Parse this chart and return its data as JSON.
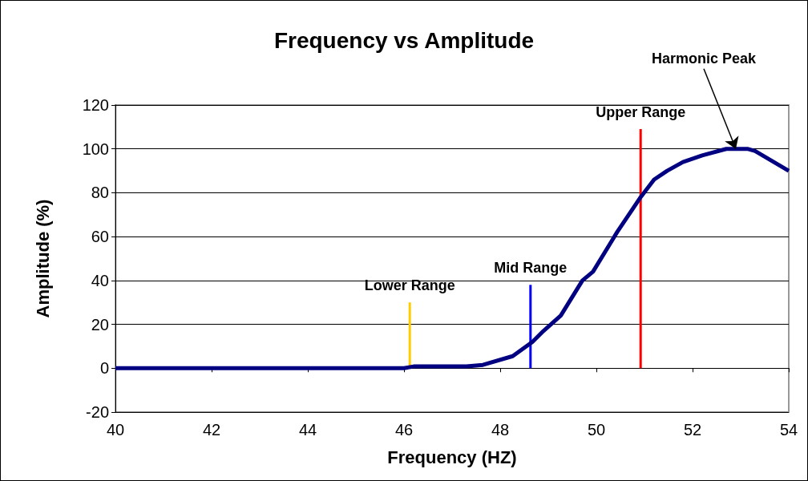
{
  "chart_data": {
    "type": "line",
    "title": "Frequency vs Amplitude",
    "xlabel": "Frequency (HZ)",
    "ylabel": "Amplitude (%)",
    "xlim": [
      40,
      54
    ],
    "xticks": [
      40,
      42,
      44,
      46,
      48,
      50,
      52,
      54
    ],
    "ylim": [
      -20,
      120
    ],
    "yticks": [
      -20,
      0,
      20,
      40,
      60,
      80,
      100,
      120
    ],
    "grid": "y",
    "legend": false,
    "marker": "none",
    "line_style": "solid",
    "series": [
      {
        "color": "#000080",
        "x": [
          40,
          46,
          46.2,
          47.3,
          47.64,
          48.26,
          48.67,
          48.9,
          49.26,
          49.71,
          49.93,
          50.43,
          50.92,
          51.2,
          51.47,
          51.8,
          52.2,
          52.7,
          53.14,
          53.3,
          54
        ],
        "values": [
          0,
          0,
          0.8,
          0.8,
          1.5,
          5.5,
          12,
          17,
          24,
          40,
          44,
          62,
          78,
          86,
          90,
          94,
          97,
          100,
          100,
          99,
          90
        ]
      },
      {
        "name": "Lower Range",
        "color": "#ffcc00",
        "x": [
          46.12,
          46.12
        ],
        "values": [
          0,
          30
        ]
      },
      {
        "name": "Mid Range",
        "color": "#0000ff",
        "x": [
          48.63,
          48.63
        ],
        "values": [
          0,
          38
        ]
      },
      {
        "name": "Upper Range",
        "color": "#ff0000",
        "x": [
          50.92,
          50.92
        ],
        "values": [
          0,
          109
        ]
      }
    ],
    "annotations": [
      {
        "text": "Harmonic Peak",
        "x": 52.9,
        "y": 100
      }
    ]
  }
}
